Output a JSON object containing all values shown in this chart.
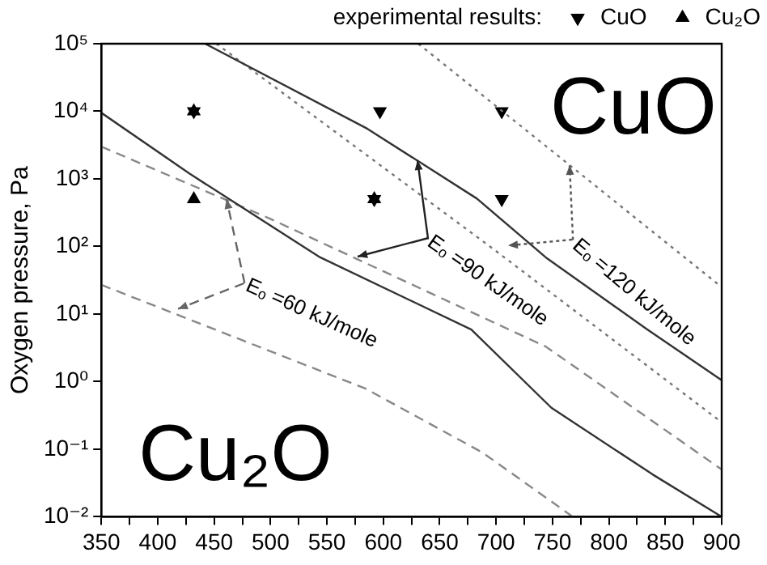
{
  "chart_data": {
    "type": "line",
    "xlabel": null,
    "ylabel": "Oxygen pressure, Pa",
    "legend_title": "experimental results:",
    "legend": "top",
    "log": "y",
    "grid": false,
    "xlim": [
      350,
      900
    ],
    "xticks": [
      350,
      {
        "value": 375,
        "label": null
      },
      400,
      {
        "value": 425,
        "label": null
      },
      450,
      {
        "value": 475,
        "label": null
      },
      500,
      {
        "value": 525,
        "label": null
      },
      550,
      {
        "value": 575,
        "label": null
      },
      600,
      {
        "value": 625,
        "label": null
      },
      650,
      {
        "value": 675,
        "label": null
      },
      700,
      {
        "value": 725,
        "label": null
      },
      750,
      {
        "value": 775,
        "label": null
      },
      800,
      {
        "value": 825,
        "label": null
      },
      850,
      {
        "value": 875,
        "label": null
      },
      900
    ],
    "ylim": [
      0.01,
      100000
    ],
    "yticks": [
      {
        "value": 0.01,
        "label": "10⁻²"
      },
      {
        "value": 0.1,
        "label": "10⁻¹"
      },
      {
        "value": 1,
        "label": "10⁰"
      },
      {
        "value": 10,
        "label": "10¹"
      },
      {
        "value": 100,
        "label": "10²"
      },
      {
        "value": 1000,
        "label": "10³"
      },
      {
        "value": 10000,
        "label": "10⁴"
      },
      {
        "value": 100000,
        "label": "10⁵"
      }
    ],
    "series": [
      {
        "color": "#333333",
        "line_style": "solid",
        "marker": "none",
        "x": [
          350,
          428,
          544,
          678,
          749,
          839,
          900
        ],
        "values": [
          9500,
          1200,
          69,
          5.9,
          0.41,
          0.042,
          0.01
        ]
      },
      {
        "color": "#333333",
        "line_style": "solid",
        "marker": "none",
        "x": [
          442,
          586,
          683,
          744,
          834,
          900
        ],
        "values": [
          100000,
          5500,
          510,
          69,
          5.9,
          1.05
        ]
      },
      {
        "color": "#888888",
        "line_style": "dashed",
        "marker": "none",
        "x": [
          350,
          499,
          744,
          900
        ],
        "values": [
          3000,
          260,
          3.3,
          0.05
        ]
      },
      {
        "color": "#888888",
        "line_style": "dashed",
        "marker": "none",
        "x": [
          350,
          584,
          688,
          768
        ],
        "values": [
          27,
          0.79,
          0.089,
          0.01
        ]
      },
      {
        "color": "#777777",
        "line_style": "dotted",
        "marker": "none",
        "x": [
          452,
          697,
          900
        ],
        "values": [
          100000,
          93,
          0.25
        ]
      },
      {
        "color": "#777777",
        "line_style": "dotted",
        "marker": "none",
        "x": [
          631,
          900
        ],
        "values": [
          100000,
          25
        ]
      },
      {
        "type": "scatter",
        "name": "CuO",
        "color": "#000000",
        "marker": "triangle-down",
        "x": [
          432,
          597,
          705,
          592,
          705
        ],
        "values": [
          10000,
          10000,
          10000,
          500,
          500
        ]
      },
      {
        "type": "scatter",
        "name": "Cu₂O",
        "color": "#000000",
        "marker": "triangle",
        "x": [
          432,
          432,
          592
        ],
        "values": [
          10000,
          500,
          500
        ]
      }
    ],
    "annotations": [
      "CuO",
      "Cu₂O",
      {
        "text": "Eₒ =60 kJ/mole",
        "x": 461,
        "y": 490
      },
      {
        "text": "Eₒ =90 kJ/mole",
        "x": 630,
        "y": 1900
      },
      {
        "text": "Eₒ =120 kJ/mole",
        "x": 765,
        "y": 1600
      }
    ]
  }
}
